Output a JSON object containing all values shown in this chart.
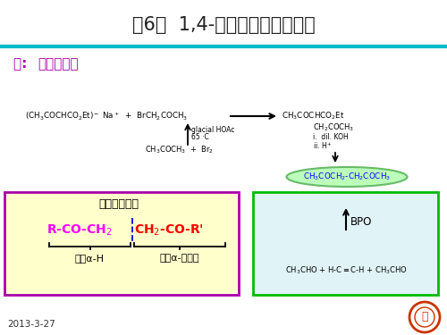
{
  "title": "第6节  1,4-二羰基化合物的拆开",
  "title_color": "#222222",
  "title_fontsize": 15,
  "teal_line_color": "#00BBCC",
  "bg_color": "#FFFFFF",
  "example_color": "#AA00AA",
  "box_left_bg": "#FFFFCC",
  "box_left_border": "#AA00AA",
  "box_left_title": "基本拆开方法",
  "box_left_label1": "提供α-H",
  "box_left_label2": "提供α-卤原子",
  "box_right_border": "#00BB00",
  "box_right_bg": "#E0F4F8",
  "product_color": "#0000FF",
  "product_bg": "#AAFFAA",
  "date_text": "2013-3-27",
  "date_color": "#333333"
}
